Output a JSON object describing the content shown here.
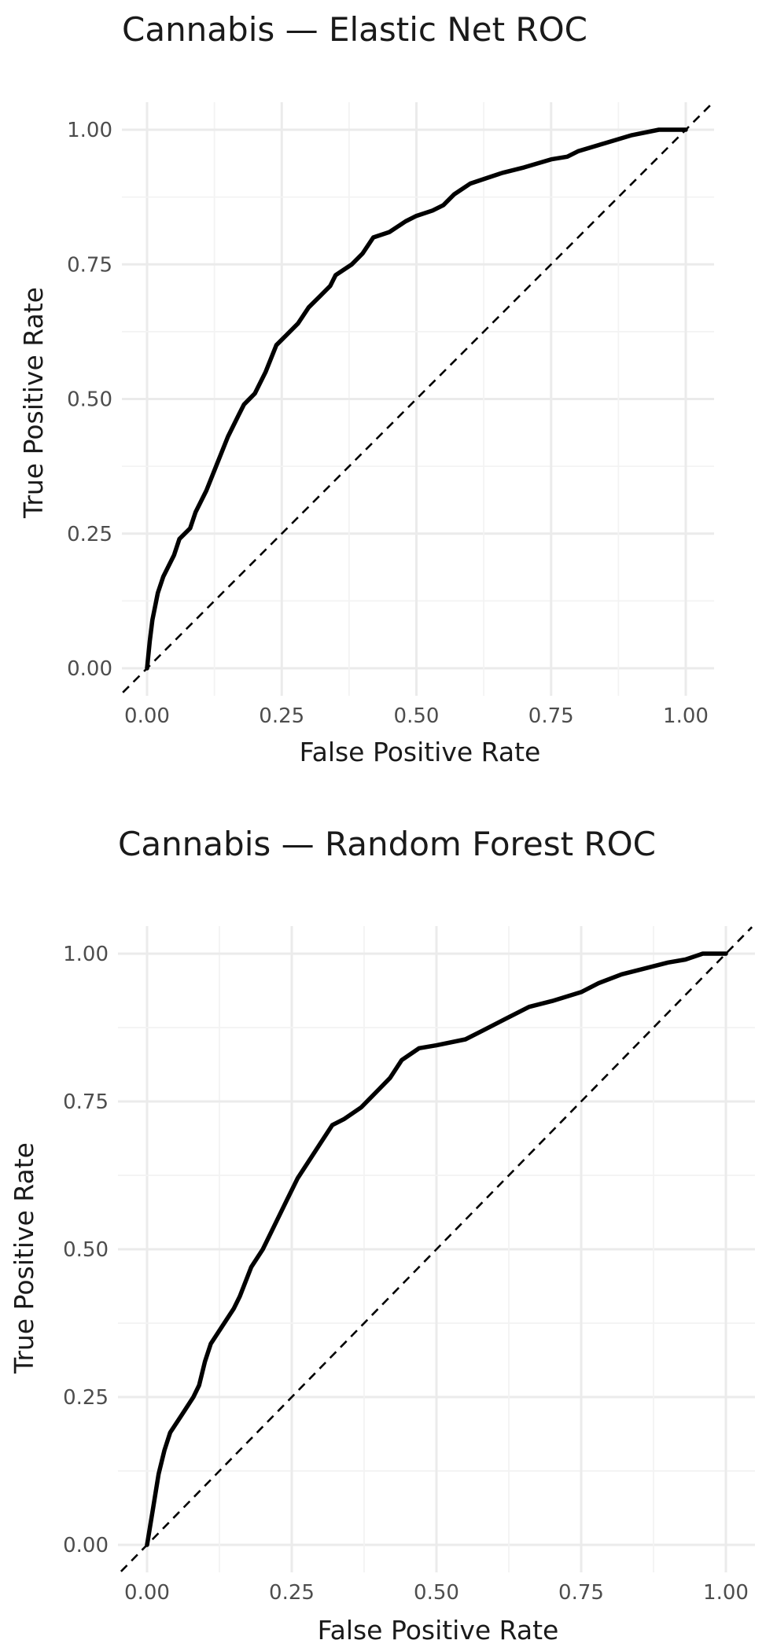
{
  "chart_data": [
    {
      "type": "line",
      "title": "Cannabis — Elastic Net ROC",
      "xlabel": "False Positive Rate",
      "ylabel": "True Positive Rate",
      "xlim": [
        0,
        1
      ],
      "ylim": [
        0,
        1
      ],
      "x_ticks": [
        "0.00",
        "0.25",
        "0.50",
        "0.75",
        "1.00"
      ],
      "y_ticks": [
        "0.00",
        "0.25",
        "0.50",
        "0.75",
        "1.00"
      ],
      "grid": true,
      "reference_line": "dashed diagonal",
      "series": [
        {
          "points": [
            [
              0.0,
              0.0
            ],
            [
              0.005,
              0.05
            ],
            [
              0.01,
              0.09
            ],
            [
              0.02,
              0.14
            ],
            [
              0.03,
              0.17
            ],
            [
              0.04,
              0.19
            ],
            [
              0.05,
              0.21
            ],
            [
              0.06,
              0.24
            ],
            [
              0.08,
              0.26
            ],
            [
              0.09,
              0.29
            ],
            [
              0.11,
              0.33
            ],
            [
              0.13,
              0.38
            ],
            [
              0.15,
              0.43
            ],
            [
              0.17,
              0.47
            ],
            [
              0.18,
              0.49
            ],
            [
              0.2,
              0.51
            ],
            [
              0.22,
              0.55
            ],
            [
              0.24,
              0.6
            ],
            [
              0.26,
              0.62
            ],
            [
              0.28,
              0.64
            ],
            [
              0.3,
              0.67
            ],
            [
              0.32,
              0.69
            ],
            [
              0.34,
              0.71
            ],
            [
              0.35,
              0.73
            ],
            [
              0.38,
              0.75
            ],
            [
              0.4,
              0.77
            ],
            [
              0.42,
              0.8
            ],
            [
              0.45,
              0.81
            ],
            [
              0.48,
              0.83
            ],
            [
              0.5,
              0.84
            ],
            [
              0.53,
              0.85
            ],
            [
              0.55,
              0.86
            ],
            [
              0.57,
              0.88
            ],
            [
              0.6,
              0.9
            ],
            [
              0.63,
              0.91
            ],
            [
              0.66,
              0.92
            ],
            [
              0.7,
              0.93
            ],
            [
              0.75,
              0.945
            ],
            [
              0.78,
              0.95
            ],
            [
              0.8,
              0.96
            ],
            [
              0.85,
              0.975
            ],
            [
              0.9,
              0.99
            ],
            [
              0.95,
              1.0
            ],
            [
              1.0,
              1.0
            ]
          ]
        }
      ]
    },
    {
      "type": "line",
      "title": "Cannabis — Random Forest ROC",
      "xlabel": "False Positive Rate",
      "ylabel": "True Positive Rate",
      "xlim": [
        0,
        1
      ],
      "ylim": [
        0,
        1
      ],
      "x_ticks": [
        "0.00",
        "0.25",
        "0.50",
        "0.75",
        "1.00"
      ],
      "y_ticks": [
        "0.00",
        "0.25",
        "0.50",
        "0.75",
        "1.00"
      ],
      "grid": true,
      "reference_line": "dashed diagonal",
      "series": [
        {
          "points": [
            [
              0.0,
              0.0
            ],
            [
              0.01,
              0.06
            ],
            [
              0.02,
              0.12
            ],
            [
              0.03,
              0.16
            ],
            [
              0.04,
              0.19
            ],
            [
              0.06,
              0.22
            ],
            [
              0.08,
              0.25
            ],
            [
              0.09,
              0.27
            ],
            [
              0.1,
              0.31
            ],
            [
              0.11,
              0.34
            ],
            [
              0.13,
              0.37
            ],
            [
              0.15,
              0.4
            ],
            [
              0.16,
              0.42
            ],
            [
              0.18,
              0.47
            ],
            [
              0.2,
              0.5
            ],
            [
              0.22,
              0.54
            ],
            [
              0.24,
              0.58
            ],
            [
              0.26,
              0.62
            ],
            [
              0.28,
              0.65
            ],
            [
              0.3,
              0.68
            ],
            [
              0.32,
              0.71
            ],
            [
              0.34,
              0.72
            ],
            [
              0.37,
              0.74
            ],
            [
              0.4,
              0.77
            ],
            [
              0.42,
              0.79
            ],
            [
              0.44,
              0.82
            ],
            [
              0.47,
              0.84
            ],
            [
              0.5,
              0.845
            ],
            [
              0.55,
              0.855
            ],
            [
              0.58,
              0.87
            ],
            [
              0.62,
              0.89
            ],
            [
              0.66,
              0.91
            ],
            [
              0.7,
              0.92
            ],
            [
              0.75,
              0.935
            ],
            [
              0.78,
              0.95
            ],
            [
              0.82,
              0.965
            ],
            [
              0.86,
              0.975
            ],
            [
              0.9,
              0.985
            ],
            [
              0.93,
              0.99
            ],
            [
              0.96,
              1.0
            ],
            [
              1.0,
              1.0
            ]
          ]
        }
      ]
    }
  ]
}
